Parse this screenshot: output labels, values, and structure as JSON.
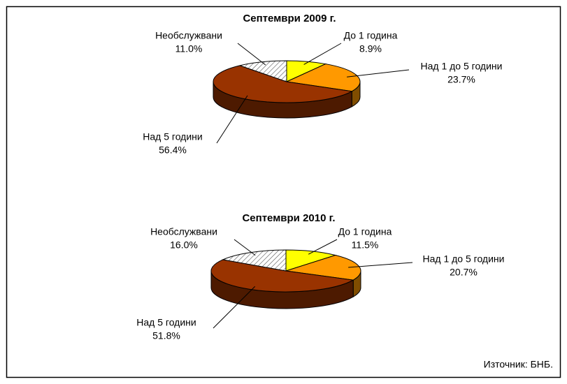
{
  "chart_data": [
    {
      "type": "pie",
      "title": "Септември 2009 г.",
      "categories": [
        "До 1 година",
        "Над 1 до 5 години",
        "Над 5 години",
        "Необслужвани"
      ],
      "values": [
        8.9,
        23.7,
        56.4,
        11.0
      ],
      "value_labels": [
        "8.9%",
        "23.7%",
        "56.4%",
        "11.0%"
      ],
      "colors": [
        "#ffff00",
        "#ff9900",
        "#993300",
        "#ffffff"
      ],
      "hatched": [
        false,
        false,
        false,
        true
      ]
    },
    {
      "type": "pie",
      "title": "Септември 2010 г.",
      "categories": [
        "До 1 година",
        "Над 1 до 5 години",
        "Над 5 години",
        "Необслужвани"
      ],
      "values": [
        11.5,
        20.7,
        51.8,
        16.0
      ],
      "value_labels": [
        "11.5%",
        "20.7%",
        "51.8%",
        "16.0%"
      ],
      "colors": [
        "#ffff00",
        "#ff9900",
        "#993300",
        "#ffffff"
      ],
      "hatched": [
        false,
        false,
        false,
        true
      ]
    }
  ],
  "source": "Източник: БНБ."
}
